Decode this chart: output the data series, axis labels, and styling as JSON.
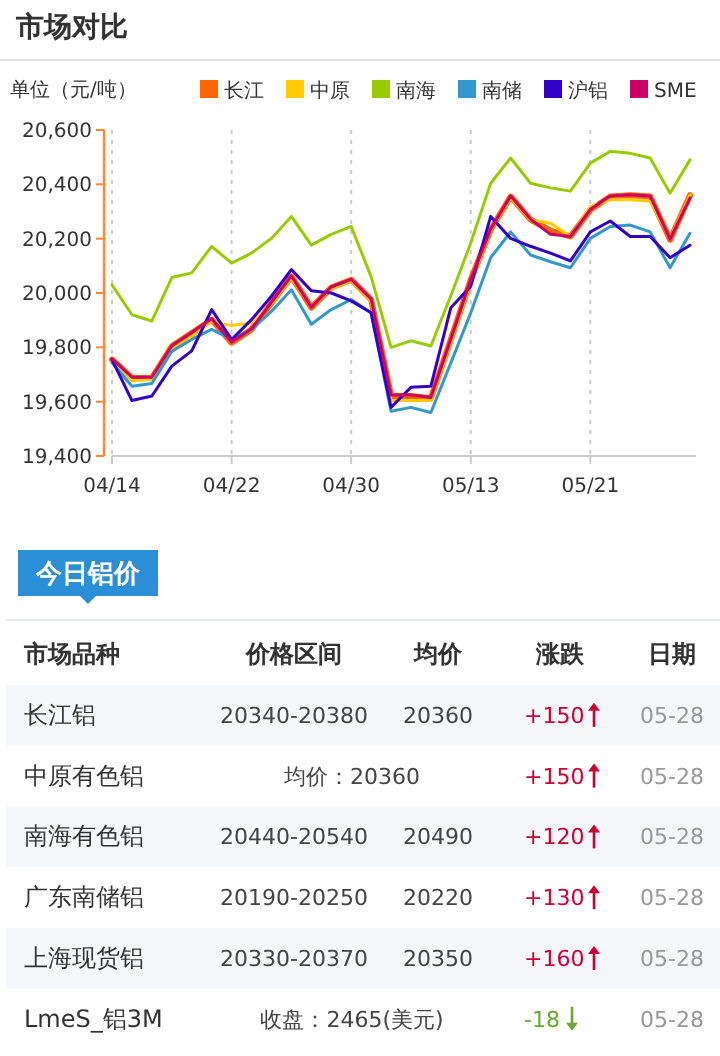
{
  "chart_data": [
    {
      "type": "line",
      "title": "市场对比",
      "ylabel": "单位（元/吨）",
      "categories": [
        "04/14",
        null,
        null,
        null,
        null,
        null,
        "04/22",
        null,
        null,
        null,
        null,
        null,
        "04/30",
        null,
        null,
        null,
        null,
        null,
        "05/13",
        null,
        null,
        null,
        null,
        null,
        "05/21",
        null,
        null,
        null,
        null,
        null
      ],
      "series": [
        {
          "name": "长江",
          "color": "#ff6600",
          "values": [
            19755,
            19687,
            19687,
            19804,
            19853,
            19902,
            19817,
            19866,
            19963,
            20061,
            19946,
            20020,
            20049,
            19976,
            19621,
            19621,
            19613,
            19829,
            20049,
            20233,
            20355,
            20270,
            20230,
            20208,
            20306,
            20355,
            20360,
            20355,
            20196,
            20360
          ]
        },
        {
          "name": "中原",
          "color": "#ffcc00",
          "values": [
            19750,
            19677,
            19682,
            19792,
            19840,
            19895,
            19880,
            19890,
            19960,
            20055,
            19950,
            20015,
            20045,
            19970,
            19604,
            19604,
            19604,
            19820,
            20040,
            20230,
            20350,
            20270,
            20257,
            20208,
            20318,
            20343,
            20343,
            20338,
            20201,
            20360
          ]
        },
        {
          "name": "南海",
          "color": "#99cc00",
          "values": [
            20030,
            19920,
            19897,
            20057,
            20074,
            20172,
            20110,
            20147,
            20201,
            20282,
            20176,
            20216,
            20245,
            20060,
            19800,
            19824,
            19805,
            19990,
            20184,
            20404,
            20497,
            20404,
            20387,
            20375,
            20478,
            20522,
            20514,
            20497,
            20367,
            20490
          ]
        },
        {
          "name": "南储",
          "color": "#3399cc",
          "values": [
            19743,
            19657,
            19667,
            19785,
            19829,
            19866,
            19829,
            19866,
            19932,
            20012,
            19885,
            19939,
            19976,
            19927,
            19565,
            19579,
            19560,
            19743,
            19927,
            20130,
            20225,
            20140,
            20115,
            20093,
            20201,
            20245,
            20250,
            20225,
            20093,
            20220
          ]
        },
        {
          "name": "沪铝",
          "color": "#3300cc",
          "values": [
            19755,
            19604,
            19621,
            19731,
            19787,
            19939,
            19829,
            19902,
            19988,
            20086,
            20008,
            20000,
            19971,
            19927,
            19579,
            19653,
            19657,
            19946,
            20025,
            20282,
            20201,
            20172,
            20147,
            20118,
            20225,
            20265,
            20208,
            20208,
            20130,
            20176
          ]
        },
        {
          "name": "SME",
          "color": "#cc0066",
          "values": [
            19758,
            19690,
            19690,
            19806,
            19855,
            19905,
            19820,
            19868,
            19966,
            20063,
            19948,
            20022,
            20050,
            19978,
            19625,
            19625,
            19615,
            19830,
            20050,
            20235,
            20357,
            20272,
            20216,
            20208,
            20308,
            20357,
            20362,
            20357,
            20198,
            20350
          ]
        }
      ],
      "ylim": [
        19400,
        20600
      ],
      "yticks": [
        {
          "value": 19400,
          "label": "19,400"
        },
        {
          "value": 19600,
          "label": "19,600"
        },
        {
          "value": 19800,
          "label": "19,800"
        },
        {
          "value": 20000,
          "label": "20,000"
        },
        {
          "value": 20200,
          "label": "20,200"
        },
        {
          "value": 20400,
          "label": "20,400"
        },
        {
          "value": 20600,
          "label": "20,600"
        }
      ],
      "grid": "x",
      "legend": "top right",
      "marker": "none",
      "line_style": "solid"
    },
    {
      "type": "other",
      "title": "今日铝价",
      "categories": [
        "市场品种",
        "价格区间",
        "均价",
        "涨跌",
        "日期"
      ],
      "cell_labels": [
        [
          "长江铝",
          "20340-20380",
          "20360",
          "+150",
          "05-28"
        ],
        [
          "中原有色铝",
          "均价：20360",
          null,
          "+150",
          "05-28"
        ],
        [
          "南海有色铝",
          "20440-20540",
          "20490",
          "+120",
          "05-28"
        ],
        [
          "广东南储铝",
          "20190-20250",
          "20220",
          "+130",
          "05-28"
        ],
        [
          "上海现货铝",
          "20330-20370",
          "20350",
          "+160",
          "05-28"
        ],
        [
          "LmeS_铝3M",
          "收盘：2465(美元)",
          null,
          "-18",
          "05-28"
        ]
      ],
      "colors": [
        "#cc0033",
        "#cc0033",
        "#cc0033",
        "#cc0033",
        "#cc0033",
        "#66aa33"
      ]
    }
  ]
}
